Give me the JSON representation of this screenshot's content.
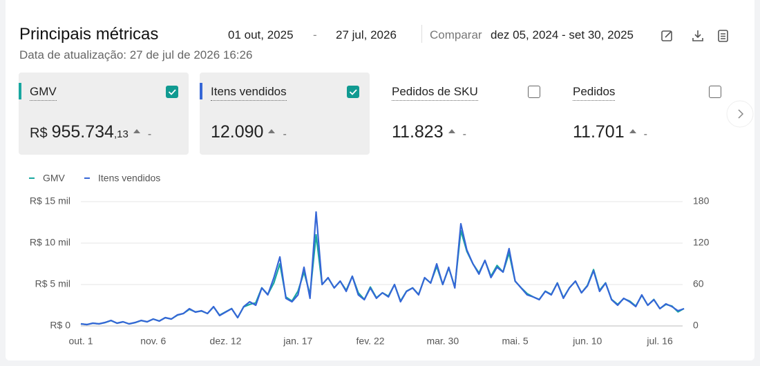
{
  "header": {
    "title": "Principais métricas",
    "updated": "Data de atualização: 27 de jul de 2026 16:26",
    "date_start": "01 out, 2025",
    "date_separator": "-",
    "date_end": "27 jul, 2026",
    "compare_label": "Comparar",
    "compare_range": "dez 05, 2024 - set 30, 2025"
  },
  "metrics": [
    {
      "name": "GMV",
      "currency": "R$",
      "value": "955.734",
      "decimals": ",13",
      "change": "-",
      "checked": true,
      "color": "#19a7a0"
    },
    {
      "name": "Itens vendidos",
      "value": "12.090",
      "change": "-",
      "checked": true,
      "color": "#3566d6"
    },
    {
      "name": "Pedidos de SKU",
      "value": "11.823",
      "change": "-",
      "checked": false
    },
    {
      "name": "Pedidos",
      "value": "11.701",
      "change": "-",
      "checked": false
    }
  ],
  "chart_data": {
    "type": "line",
    "categories": [
      "out. 1",
      null,
      null,
      null,
      null,
      null,
      null,
      null,
      null,
      null,
      null,
      null,
      "nov. 6",
      null,
      null,
      null,
      null,
      null,
      null,
      null,
      null,
      null,
      null,
      null,
      "dez. 12",
      null,
      null,
      null,
      null,
      null,
      null,
      null,
      null,
      null,
      null,
      null,
      "jan. 17",
      null,
      null,
      null,
      null,
      null,
      null,
      null,
      null,
      null,
      null,
      null,
      "fev. 22",
      null,
      null,
      null,
      null,
      null,
      null,
      null,
      null,
      null,
      null,
      null,
      "mar. 30",
      null,
      null,
      null,
      null,
      null,
      null,
      null,
      null,
      null,
      null,
      null,
      "mai. 5",
      null,
      null,
      null,
      null,
      null,
      null,
      null,
      null,
      null,
      null,
      null,
      "jun. 10",
      null,
      null,
      null,
      null,
      null,
      null,
      null,
      null,
      null,
      null,
      null,
      "jul. 16",
      null,
      null,
      null,
      null
    ],
    "series": [
      {
        "name": "GMV",
        "color": "#19a7a0",
        "values": [
          250,
          170,
          330,
          250,
          400,
          650,
          330,
          500,
          250,
          400,
          650,
          500,
          830,
          600,
          1000,
          830,
          1300,
          1500,
          2000,
          1700,
          1800,
          1500,
          2300,
          1300,
          1700,
          2100,
          1000,
          2300,
          2600,
          2800,
          4600,
          3800,
          5200,
          7500,
          3500,
          3000,
          4200,
          6500,
          3800,
          11000,
          5000,
          5800,
          4600,
          5400,
          4300,
          6000,
          4000,
          3200,
          4700,
          3400,
          4000,
          3600,
          5000,
          3000,
          4200,
          4600,
          3800,
          5800,
          5200,
          7200,
          5000,
          7000,
          4700,
          11500,
          9000,
          7500,
          6400,
          7900,
          6000,
          7300,
          6500,
          8800,
          5400,
          4600,
          3900,
          3500,
          3200,
          4200,
          3800,
          5200,
          3400,
          4600,
          5400,
          4000,
          4900,
          6800,
          4300,
          5200,
          3200,
          2600,
          3300,
          3000,
          2400,
          3700,
          2500,
          3200,
          2100,
          2600,
          2400,
          1700,
          2100
        ]
      },
      {
        "name": "Itens vendidos",
        "color": "#3566d6",
        "axis": "y2",
        "values": [
          3,
          2,
          4,
          3,
          5,
          8,
          4,
          6,
          3,
          5,
          8,
          6,
          10,
          7,
          12,
          10,
          16,
          18,
          25,
          20,
          22,
          18,
          28,
          15,
          20,
          25,
          12,
          28,
          35,
          30,
          55,
          45,
          70,
          100,
          40,
          35,
          45,
          85,
          40,
          165,
          60,
          70,
          55,
          65,
          50,
          72,
          45,
          38,
          55,
          40,
          48,
          42,
          60,
          35,
          50,
          55,
          45,
          70,
          62,
          90,
          60,
          85,
          55,
          148,
          110,
          90,
          75,
          95,
          70,
          85,
          78,
          112,
          65,
          55,
          45,
          42,
          38,
          50,
          45,
          62,
          40,
          55,
          65,
          48,
          58,
          80,
          50,
          62,
          38,
          30,
          40,
          35,
          28,
          45,
          30,
          38,
          25,
          32,
          28,
          22,
          25
        ]
      }
    ],
    "ylim": [
      0,
      15000
    ],
    "yticks": [
      {
        "value": 0,
        "label": "R$ 0"
      },
      {
        "value": 5000,
        "label": "R$ 5 mil"
      },
      {
        "value": 10000,
        "label": "R$ 10 mil"
      },
      {
        "value": 15000,
        "label": "R$ 15 mil"
      }
    ],
    "y2lim": [
      0,
      180
    ],
    "y2ticks": [
      0,
      60,
      120,
      180
    ],
    "grid": true
  }
}
